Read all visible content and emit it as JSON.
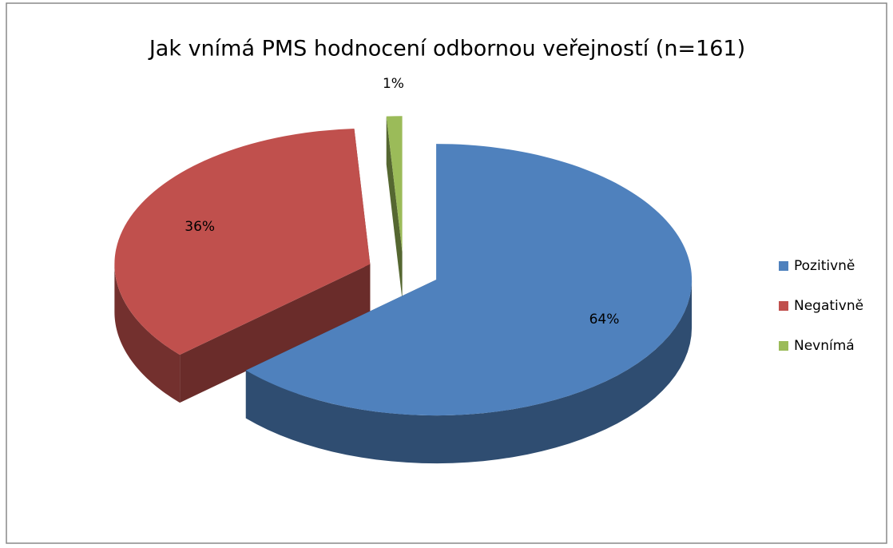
{
  "chart_data": {
    "type": "pie3d",
    "title": "Jak vnímá PMS hodnocení odbornou veřejností (n=161)",
    "categories": [
      "Pozitivně",
      "Negativně",
      "Nevnímá"
    ],
    "values": [
      64,
      36,
      1
    ],
    "value_labels": [
      "64%",
      "36%",
      "1%"
    ],
    "colors": [
      "#4f81bd",
      "#c0504d",
      "#9bbb59"
    ],
    "legend": "right"
  }
}
